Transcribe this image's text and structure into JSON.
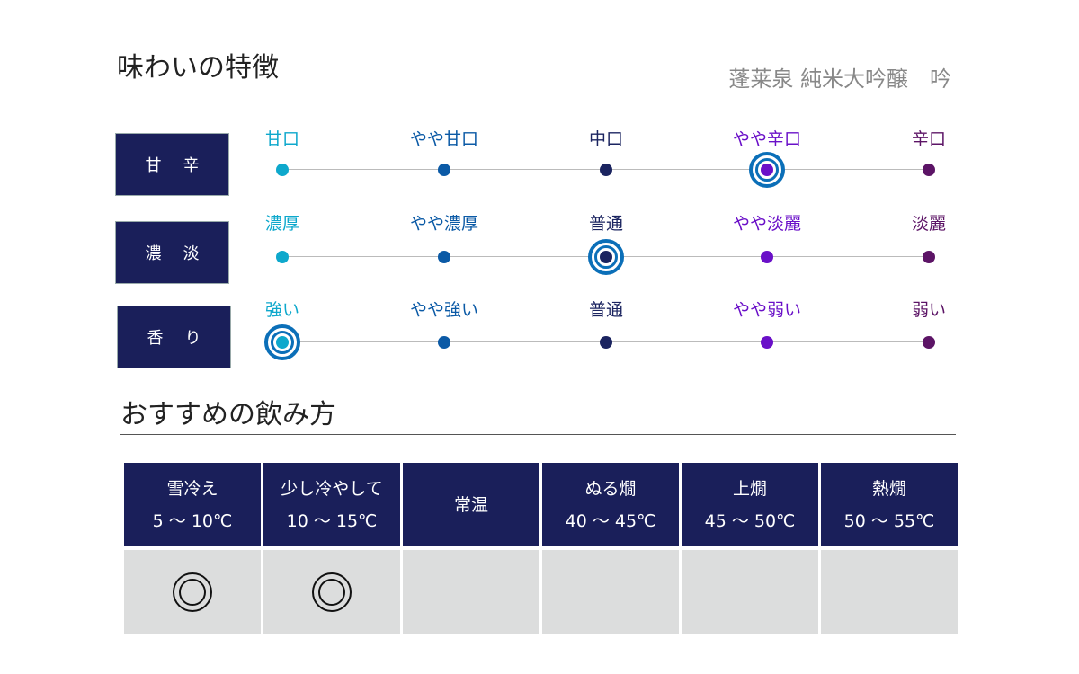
{
  "taste": {
    "title": "味わいの特徴",
    "product": "蓬莱泉 純米大吟醸　吟"
  },
  "level_colors": [
    "#0ea8cc",
    "#0b5aa6",
    "#1b2460",
    "#6a10c8",
    "#5c1466"
  ],
  "rows": [
    {
      "label": "甘辛",
      "levels": [
        "甘口",
        "やや甘口",
        "中口",
        "やや辛口",
        "辛口"
      ],
      "selected": 3
    },
    {
      "label": "濃淡",
      "levels": [
        "濃厚",
        "やや濃厚",
        "普通",
        "やや淡麗",
        "淡麗"
      ],
      "selected": 2
    },
    {
      "label": "香り",
      "levels": [
        "強い",
        "やや強い",
        "普通",
        "やや弱い",
        "弱い"
      ],
      "selected": 0
    }
  ],
  "serving": {
    "title": "おすすめの飲み方",
    "columns": [
      {
        "name": "雪冷え",
        "temp": "5 ～ 10℃",
        "mark": "double-circle"
      },
      {
        "name": "少し冷やして",
        "temp": "10 ～ 15℃",
        "mark": "double-circle"
      },
      {
        "name": "常温",
        "temp": "",
        "mark": ""
      },
      {
        "name": "ぬる燗",
        "temp": "40 ～ 45℃",
        "mark": ""
      },
      {
        "name": "上燗",
        "temp": "45 ～ 50℃",
        "mark": ""
      },
      {
        "name": "熱燗",
        "temp": "50 ～ 55℃",
        "mark": ""
      }
    ]
  }
}
